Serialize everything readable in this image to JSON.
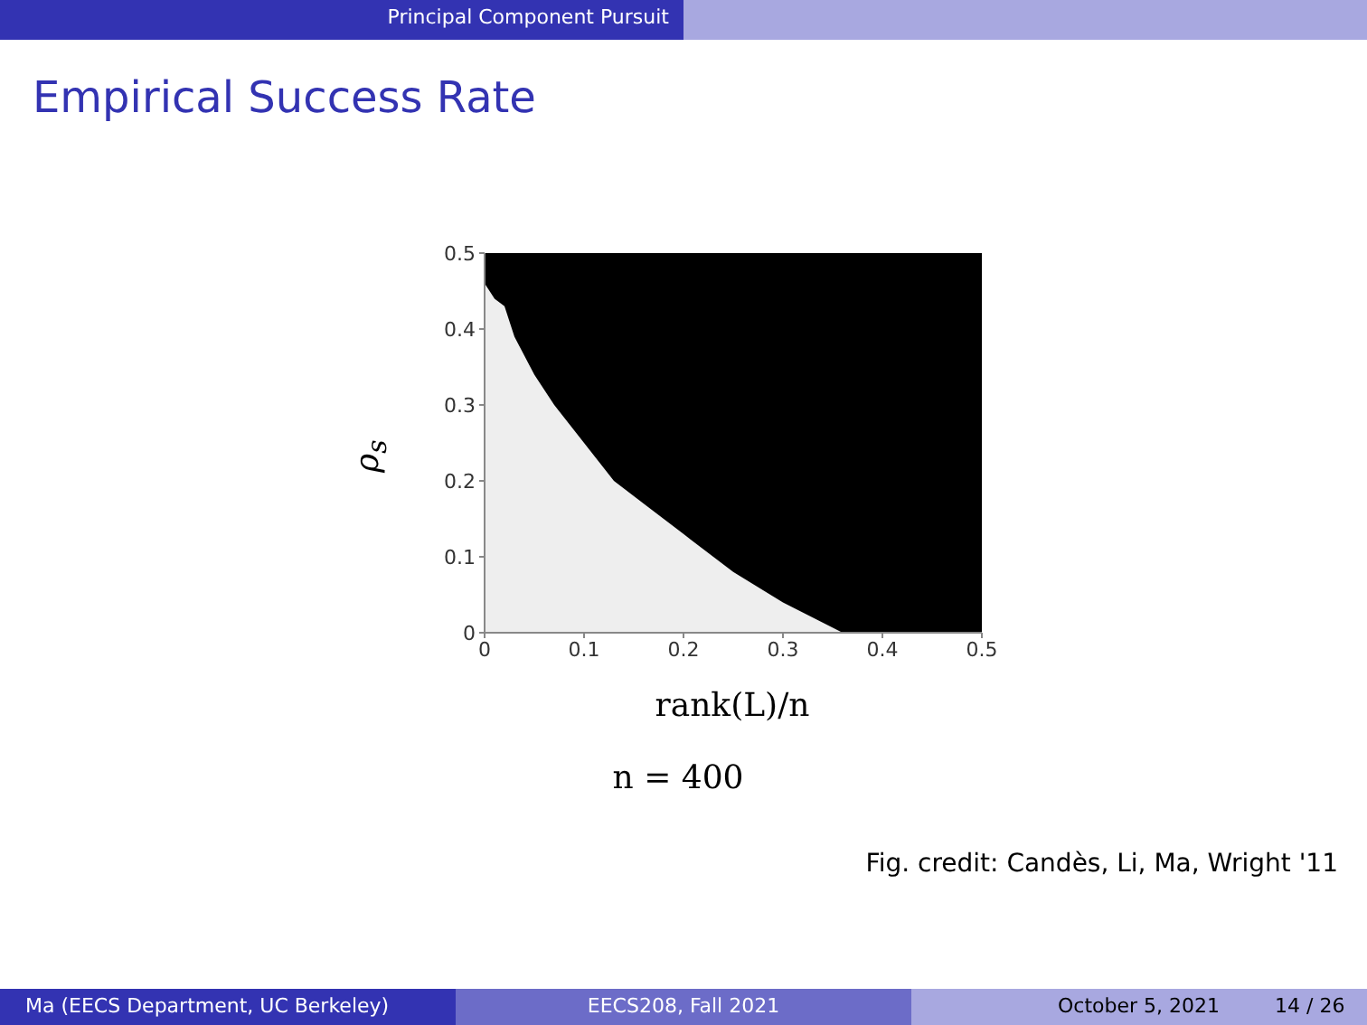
{
  "chart_data": {
    "type": "area",
    "title": "Empirical Success Rate",
    "xlabel": "rank(L)/n",
    "ylabel": "ρ$_{s}$",
    "annotations": [
      "Principal Component Pursuit",
      "n = 400",
      "Fig. credit: Candès, Li, Ma, Wright '11",
      "Ma (EECS Department, UC Berkeley)",
      "EECS208, Fall 2021",
      "October 5, 2021",
      "14 / 26"
    ],
    "x": [
      0,
      0.01,
      0.02,
      0.03,
      0.05,
      0.07,
      0.1,
      0.13,
      0.16,
      0.2,
      0.25,
      0.3,
      0.33,
      0.36,
      0.5
    ],
    "stacked": true,
    "series": [
      {
        "color": "#eeeeee",
        "values": [
          0.46,
          0.44,
          0.43,
          0.39,
          0.34,
          0.3,
          0.25,
          0.2,
          0.17,
          0.13,
          0.08,
          0.04,
          0.02,
          0,
          0
        ]
      },
      {
        "color": "#000000",
        "values": [
          0.04,
          0.06,
          0.07,
          0.11,
          0.16,
          0.2,
          0.25,
          0.3,
          0.33,
          0.37,
          0.42,
          0.46,
          0.48,
          0.5,
          0.5
        ]
      }
    ],
    "xlim": [
      0,
      0.5
    ],
    "xticks": [
      0,
      0.1,
      0.2,
      0.3,
      0.4,
      0.5
    ],
    "ylim": [
      0,
      0.5
    ],
    "yticks": [
      0,
      0.1,
      0.2,
      0.3,
      0.4,
      0.5
    ],
    "grid": false,
    "legend": false
  }
}
